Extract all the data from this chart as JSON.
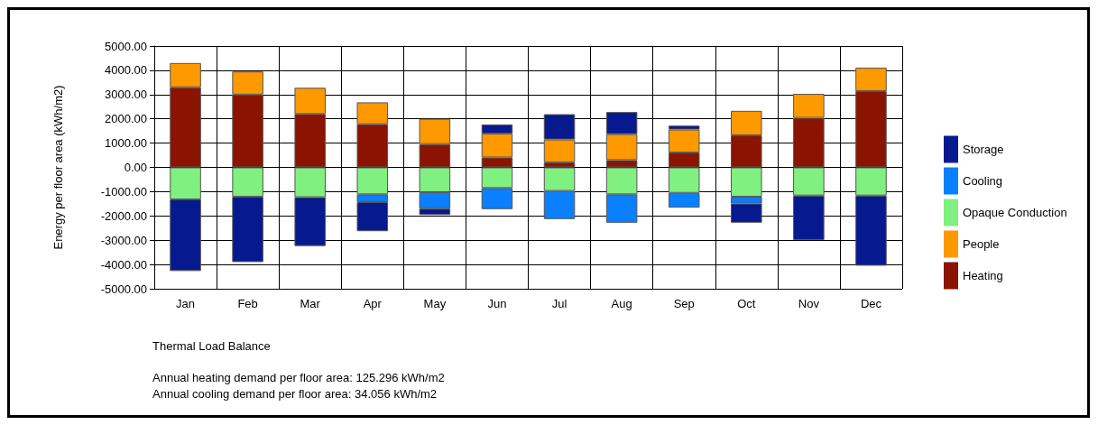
{
  "chart_data": {
    "type": "bar",
    "stacked": true,
    "ylabel": "Energy per floor area (kWh/m2)",
    "categories": [
      "Jan",
      "Feb",
      "Mar",
      "Apr",
      "May",
      "Jun",
      "Jul",
      "Aug",
      "Sep",
      "Oct",
      "Nov",
      "Dec"
    ],
    "ylim": [
      -5000,
      5000
    ],
    "yticks": [
      {
        "value": -5000,
        "label": "-5000.00"
      },
      {
        "value": -4000,
        "label": "-4000.00"
      },
      {
        "value": -3000,
        "label": "-3000.00"
      },
      {
        "value": -2000,
        "label": "-2000.00"
      },
      {
        "value": -1000,
        "label": "-1000.00"
      },
      {
        "value": 0,
        "label": "0.00"
      },
      {
        "value": 1000,
        "label": "1000.00"
      },
      {
        "value": 2000,
        "label": "2000.00"
      },
      {
        "value": 3000,
        "label": "3000.00"
      },
      {
        "value": 4000,
        "label": "4000.00"
      },
      {
        "value": 5000,
        "label": "5000.00"
      }
    ],
    "grid": true,
    "legend": "right",
    "series": [
      {
        "name": "Heating",
        "color": "#8b1400",
        "values": [
          3300,
          3000,
          2200,
          1780,
          960,
          410,
          210,
          300,
          610,
          1320,
          2040,
          3140
        ]
      },
      {
        "name": "People",
        "color": "#ff9900",
        "values": [
          1000,
          950,
          1080,
          900,
          1040,
          980,
          940,
          1070,
          950,
          1010,
          990,
          970
        ]
      },
      {
        "name": "Opaque Conduction",
        "color": "#80f080",
        "values": [
          -1320,
          -1210,
          -1230,
          -1110,
          -1020,
          -850,
          -970,
          -1110,
          -1050,
          -1210,
          -1160,
          -1160
        ]
      },
      {
        "name": "Cooling",
        "color": "#0a80ff",
        "values": [
          null,
          null,
          null,
          -320,
          -680,
          -870,
          -1160,
          -1170,
          -610,
          -280,
          null,
          null
        ]
      },
      {
        "name": "Storage",
        "color": "#06198f",
        "values": [
          -2950,
          -2690,
          -2010,
          -1200,
          -260,
          380,
          1040,
          910,
          160,
          -790,
          -1830,
          -2890
        ]
      }
    ],
    "annotations": [
      "Thermal Load Balance",
      "Annual heating demand per floor area: 125.296 kWh/m2",
      "Annual cooling demand per floor area: 34.056 kWh/m2"
    ]
  }
}
